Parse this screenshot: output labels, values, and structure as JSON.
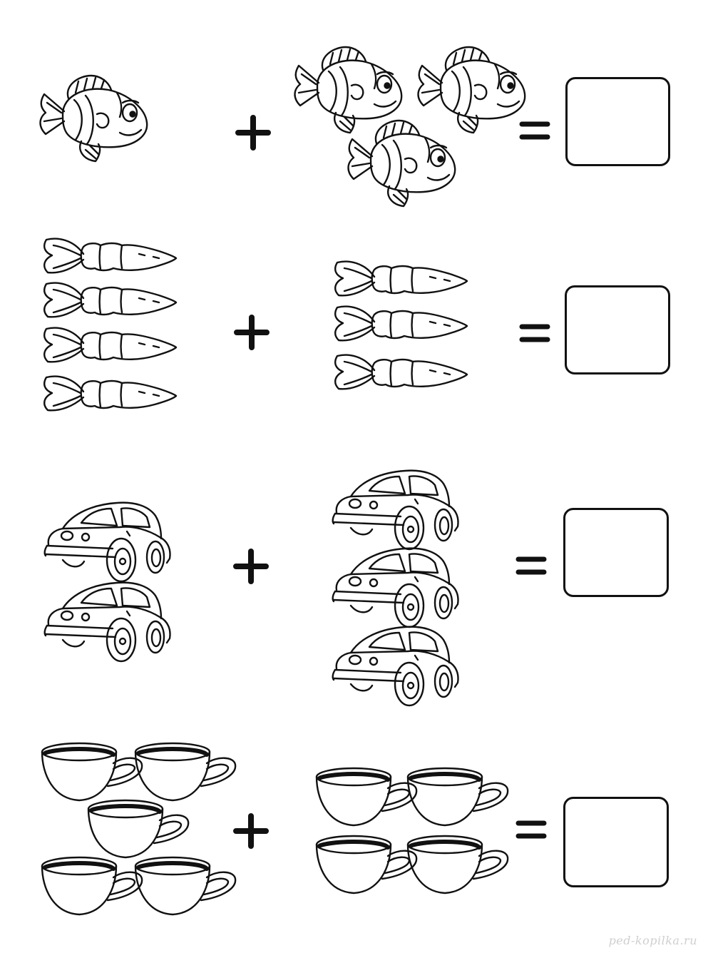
{
  "worksheet": {
    "rows": [
      {
        "object": "fish",
        "left_count": 1,
        "right_count": 3,
        "operator": "plus",
        "equals": "equals",
        "answer": ""
      },
      {
        "object": "carrot",
        "left_count": 4,
        "right_count": 3,
        "operator": "plus",
        "equals": "equals",
        "answer": ""
      },
      {
        "object": "car",
        "left_count": 2,
        "right_count": 3,
        "operator": "plus",
        "equals": "equals",
        "answer": ""
      },
      {
        "object": "cup",
        "left_count": 5,
        "right_count": 4,
        "operator": "plus",
        "equals": "equals",
        "answer": ""
      }
    ]
  },
  "watermark": {
    "text": "ped-kopilka.ru"
  },
  "colors": {
    "ink": "#111111",
    "paper": "#ffffff",
    "watermark": "#cfcfcf"
  }
}
